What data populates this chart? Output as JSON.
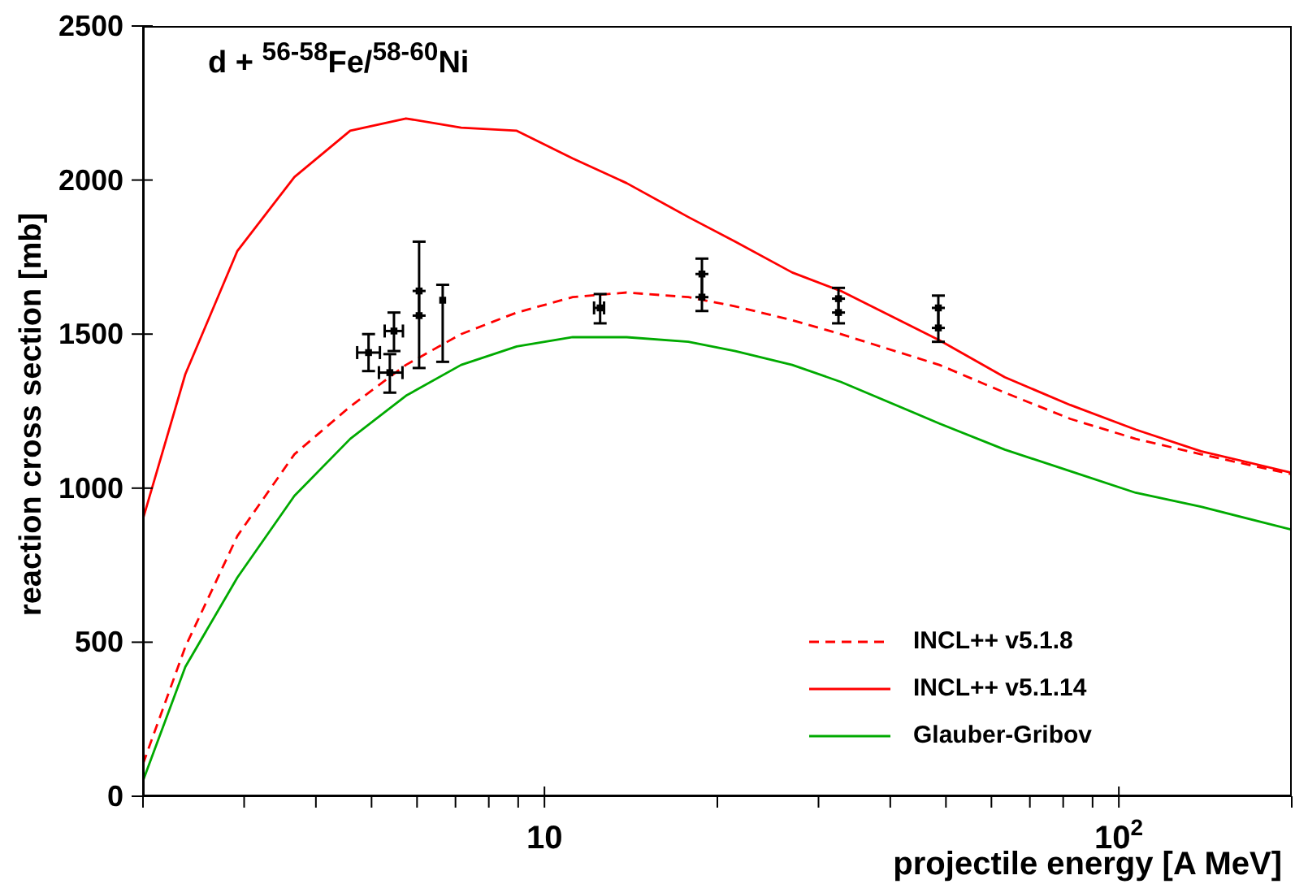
{
  "chart_data": {
    "type": "line",
    "title": "d + $^{56-58}$Fe/$^{58-60}$Ni",
    "xlabel": "projectile energy [A MeV]",
    "ylabel": "reaction cross section [mb]",
    "log": "x",
    "xlim": [
      2,
      200
    ],
    "ylim": [
      0,
      2500
    ],
    "xticks": [
      {
        "value": 2,
        "label": null
      },
      {
        "value": 3,
        "label": null
      },
      {
        "value": 4,
        "label": null
      },
      {
        "value": 5,
        "label": null
      },
      {
        "value": 6,
        "label": null
      },
      {
        "value": 7,
        "label": null
      },
      {
        "value": 8,
        "label": null
      },
      {
        "value": 9,
        "label": null
      },
      {
        "value": 10,
        "label": "10"
      },
      {
        "value": 20,
        "label": null
      },
      {
        "value": 30,
        "label": null
      },
      {
        "value": 40,
        "label": null
      },
      {
        "value": 50,
        "label": null
      },
      {
        "value": 60,
        "label": null
      },
      {
        "value": 70,
        "label": null
      },
      {
        "value": 80,
        "label": null
      },
      {
        "value": 90,
        "label": null
      },
      {
        "value": 100,
        "label": "10$^{2}$"
      },
      {
        "value": 200,
        "label": null
      }
    ],
    "yticks": [
      0,
      500,
      1000,
      1500,
      2000,
      2500
    ],
    "grid": false,
    "legend": "bottom right",
    "marker": "none",
    "series": [
      {
        "name": "INCL++ v5.1.8",
        "color": "#ff0000",
        "line_style": "dashed",
        "x": [
          2,
          2.37,
          2.92,
          3.67,
          4.59,
          5.74,
          7.16,
          8.95,
          11.2,
          13.9,
          17.8,
          21.5,
          27,
          32.8,
          48.7,
          63.3,
          82.3,
          107,
          139,
          200
        ],
        "values": [
          105,
          485,
          845,
          1110,
          1265,
          1400,
          1500,
          1570,
          1620,
          1635,
          1620,
          1590,
          1545,
          1500,
          1400,
          1310,
          1225,
          1160,
          1110,
          1045
        ]
      },
      {
        "name": "INCL++ v5.1.14",
        "color": "#ff0000",
        "line_style": "solid",
        "x": [
          2,
          2.37,
          2.92,
          3.67,
          4.59,
          5.74,
          7.16,
          8.95,
          11.2,
          13.9,
          17.8,
          21.5,
          27,
          32.8,
          48.7,
          63.3,
          82.3,
          107,
          139,
          200
        ],
        "values": [
          900,
          1370,
          1770,
          2010,
          2160,
          2200,
          2170,
          2160,
          2070,
          1990,
          1880,
          1800,
          1700,
          1640,
          1480,
          1360,
          1270,
          1190,
          1120,
          1050
        ]
      },
      {
        "name": "Glauber-Gribov",
        "color": "#00aa00",
        "line_style": "solid",
        "x": [
          2,
          2.37,
          2.92,
          3.67,
          4.59,
          5.74,
          7.16,
          8.95,
          11.2,
          13.9,
          17.8,
          21.5,
          27,
          32.8,
          48.7,
          63.3,
          82.3,
          107,
          139,
          200
        ],
        "values": [
          50,
          420,
          710,
          975,
          1160,
          1300,
          1400,
          1460,
          1490,
          1490,
          1475,
          1445,
          1400,
          1345,
          1210,
          1125,
          1055,
          985,
          940,
          865
        ]
      },
      {
        "type": "scatter",
        "color": "#000000",
        "marker": "square",
        "x": [
          4.94,
          5.47,
          5.38,
          6.05,
          6.05,
          6.65,
          12.5,
          18.8,
          18.8,
          32.5,
          32.5,
          48.5,
          48.5
        ],
        "values": [
          1440,
          1510,
          1375,
          1640,
          1560,
          1610,
          1585,
          1695,
          1620,
          1615,
          1570,
          1585,
          1520
        ],
        "errors": [
          [
            1380,
            1500
          ],
          [
            1445,
            1570
          ],
          [
            1310,
            1435
          ],
          [
            1560,
            1800
          ],
          [
            1390,
            1640
          ],
          [
            1410,
            1660
          ],
          [
            1535,
            1630
          ],
          [
            1620,
            1745
          ],
          [
            1575,
            1695
          ],
          [
            1570,
            1650
          ],
          [
            1535,
            1615
          ],
          [
            1520,
            1625
          ],
          [
            1475,
            1585
          ]
        ],
        "xerrors": [
          [
            4.72,
            5.17
          ],
          [
            5.27,
            5.67
          ],
          [
            5.15,
            5.66
          ],
          null,
          null,
          null,
          [
            12.2,
            12.7
          ],
          null,
          null,
          null,
          null,
          null,
          null
        ]
      }
    ]
  }
}
